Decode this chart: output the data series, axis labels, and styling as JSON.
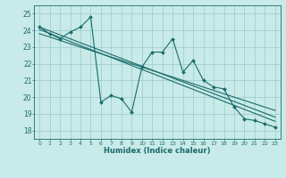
{
  "xlabel": "Humidex (Indice chaleur)",
  "ylabel": "",
  "bg_color": "#c8eae8",
  "grid_color": "#a0d0ce",
  "line_color": "#1a6b6b",
  "xlim": [
    -0.5,
    23.5
  ],
  "ylim": [
    17.5,
    25.5
  ],
  "yticks": [
    18,
    19,
    20,
    21,
    22,
    23,
    24,
    25
  ],
  "xticks": [
    0,
    1,
    2,
    3,
    4,
    5,
    6,
    7,
    8,
    9,
    10,
    11,
    12,
    13,
    14,
    15,
    16,
    17,
    18,
    19,
    20,
    21,
    22,
    23
  ],
  "series1": {
    "x": [
      0,
      1,
      2,
      3,
      4,
      5,
      6,
      7,
      8,
      9,
      10,
      11,
      12,
      13,
      14,
      15,
      16,
      17,
      18,
      19,
      20,
      21,
      22,
      23
    ],
    "y": [
      24.2,
      23.8,
      23.5,
      23.9,
      24.2,
      24.8,
      19.7,
      20.1,
      19.9,
      19.1,
      21.8,
      22.7,
      22.7,
      23.5,
      21.5,
      22.2,
      21.0,
      20.6,
      20.5,
      19.4,
      18.7,
      18.6,
      18.4,
      18.2
    ]
  },
  "regression1": {
    "x": [
      0,
      23
    ],
    "y": [
      24.2,
      18.8
    ]
  },
  "regression2": {
    "x": [
      0,
      23
    ],
    "y": [
      23.8,
      19.2
    ]
  },
  "regression3": {
    "x": [
      0,
      23
    ],
    "y": [
      24.05,
      18.55
    ]
  }
}
